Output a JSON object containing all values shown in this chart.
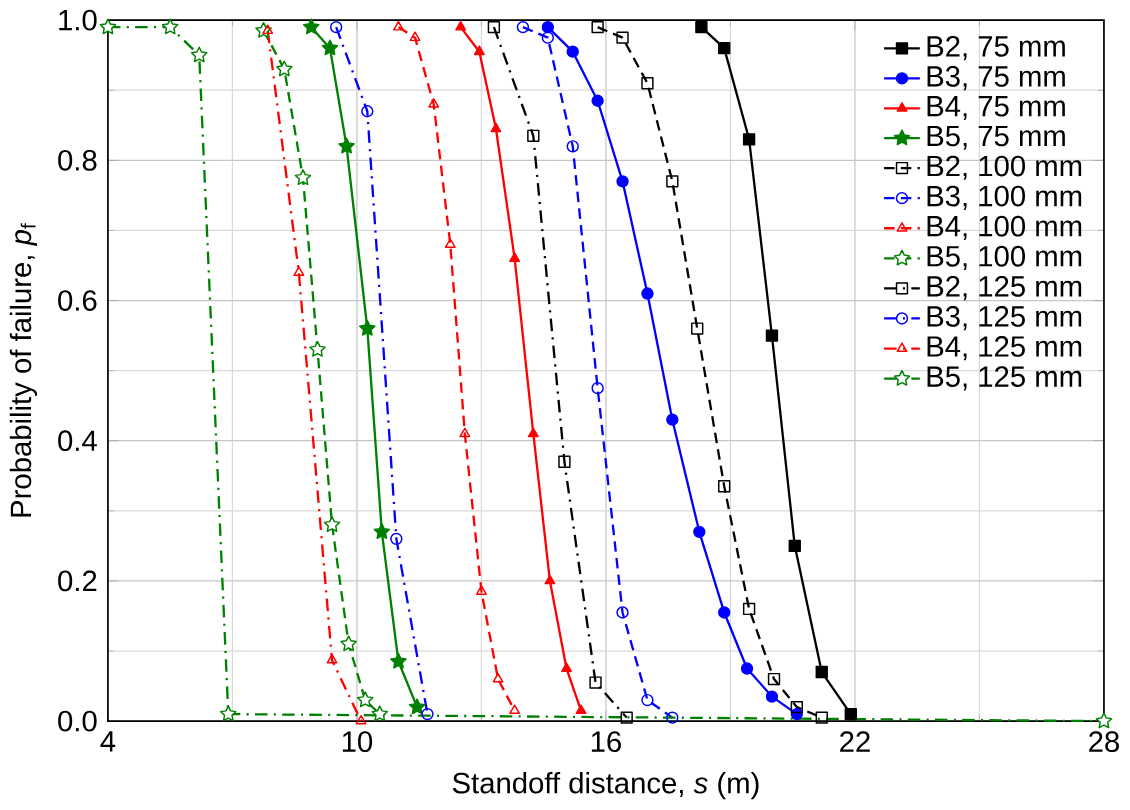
{
  "chart_data": {
    "type": "line",
    "xlabel": "Standoff distance, *s* (m)",
    "ylabel": "Probability of failure, *p*$_{f}$",
    "xlim": [
      4,
      28
    ],
    "ylim": [
      0,
      1
    ],
    "xticks": [
      4,
      10,
      16,
      22,
      28
    ],
    "yticks": [
      {
        "value": 0,
        "label": "0.0"
      },
      {
        "value": 0.2,
        "label": "0.2"
      },
      {
        "value": 0.4,
        "label": "0.4"
      },
      {
        "value": 0.6,
        "label": "0.6"
      },
      {
        "value": 0.8,
        "label": "0.8"
      },
      {
        "value": 1,
        "label": "1.0"
      }
    ],
    "grid": true,
    "legend": "top right",
    "series": [
      {
        "name": "B2, 75 mm",
        "color": "#000000",
        "marker": "square",
        "line_style": "solid",
        "x": [
          18.3,
          18.85,
          19.45,
          20.0,
          20.55,
          21.2,
          21.9
        ],
        "values": [
          0.99,
          0.96,
          0.83,
          0.55,
          0.25,
          0.07,
          0.01
        ]
      },
      {
        "name": "B3, 75 mm",
        "color": "#0000ff",
        "marker": "circle",
        "line_style": "solid",
        "x": [
          14.6,
          15.2,
          15.8,
          16.4,
          17.0,
          17.6,
          18.25,
          18.85,
          19.4,
          20.0,
          20.6
        ],
        "values": [
          0.99,
          0.955,
          0.885,
          0.77,
          0.61,
          0.43,
          0.27,
          0.155,
          0.075,
          0.035,
          0.01
        ]
      },
      {
        "name": "B4, 75 mm",
        "color": "#ff0000",
        "marker": "triangle",
        "line_style": "solid",
        "x": [
          12.5,
          12.95,
          13.35,
          13.8,
          14.25,
          14.65,
          15.05,
          15.4
        ],
        "values": [
          0.99,
          0.955,
          0.845,
          0.66,
          0.41,
          0.2,
          0.075,
          0.015
        ]
      },
      {
        "name": "B5, 75 mm",
        "color": "#008000",
        "marker": "star",
        "line_style": "solid",
        "x": [
          8.9,
          9.35,
          9.75,
          10.25,
          10.6,
          11.0,
          11.45
        ],
        "values": [
          0.99,
          0.96,
          0.82,
          0.56,
          0.27,
          0.085,
          0.02
        ]
      },
      {
        "name": "B2, 100 mm",
        "color": "#000000",
        "marker": "square",
        "line_style": "dashed",
        "x": [
          15.8,
          16.4,
          17.0,
          17.6,
          18.2,
          18.85,
          19.45,
          20.05,
          20.6,
          21.2
        ],
        "values": [
          0.99,
          0.975,
          0.91,
          0.77,
          0.56,
          0.335,
          0.16,
          0.06,
          0.02,
          0.005
        ]
      },
      {
        "name": "B3, 100 mm",
        "color": "#0000ff",
        "marker": "circle",
        "line_style": "dashed",
        "x": [
          14.0,
          14.6,
          15.2,
          15.8,
          16.4,
          17.0,
          17.6
        ],
        "values": [
          0.99,
          0.975,
          0.82,
          0.475,
          0.155,
          0.03,
          0.005
        ]
      },
      {
        "name": "B4, 100 mm",
        "color": "#ff0000",
        "marker": "triangle",
        "line_style": "dashed",
        "x": [
          11.0,
          11.4,
          11.85,
          12.25,
          12.6,
          13.0,
          13.4,
          13.8
        ],
        "values": [
          0.99,
          0.975,
          0.88,
          0.68,
          0.41,
          0.185,
          0.06,
          0.015
        ]
      },
      {
        "name": "B5, 100 mm",
        "color": "#008000",
        "marker": "star",
        "line_style": "dashed",
        "x": [
          7.75,
          8.25,
          8.7,
          9.05,
          9.4,
          9.8,
          10.2,
          10.55
        ],
        "values": [
          0.985,
          0.93,
          0.775,
          0.53,
          0.28,
          0.11,
          0.03,
          0.01
        ]
      },
      {
        "name": "B2, 125 mm",
        "color": "#000000",
        "marker": "square",
        "line_style": "dashdot",
        "x": [
          13.3,
          14.25,
          15.0,
          15.75,
          16.5
        ],
        "values": [
          0.99,
          0.835,
          0.37,
          0.055,
          0.005
        ]
      },
      {
        "name": "B3, 125 mm",
        "color": "#0000ff",
        "marker": "circle",
        "line_style": "dashdot",
        "x": [
          9.5,
          10.25,
          10.95,
          11.7
        ],
        "values": [
          0.99,
          0.87,
          0.26,
          0.01
        ]
      },
      {
        "name": "B4, 125 mm",
        "color": "#ff0000",
        "marker": "triangle",
        "line_style": "dashdot",
        "x": [
          7.85,
          8.6,
          9.4,
          10.1
        ],
        "values": [
          0.985,
          0.64,
          0.087,
          0
        ]
      },
      {
        "name": "B5, 125 mm",
        "color": "#008000",
        "marker": "star",
        "line_style": "dashdot",
        "x": [
          4,
          5.5,
          6.2,
          6.9,
          28
        ],
        "values": [
          0.99,
          0.99,
          0.95,
          0.01,
          0
        ]
      }
    ]
  }
}
